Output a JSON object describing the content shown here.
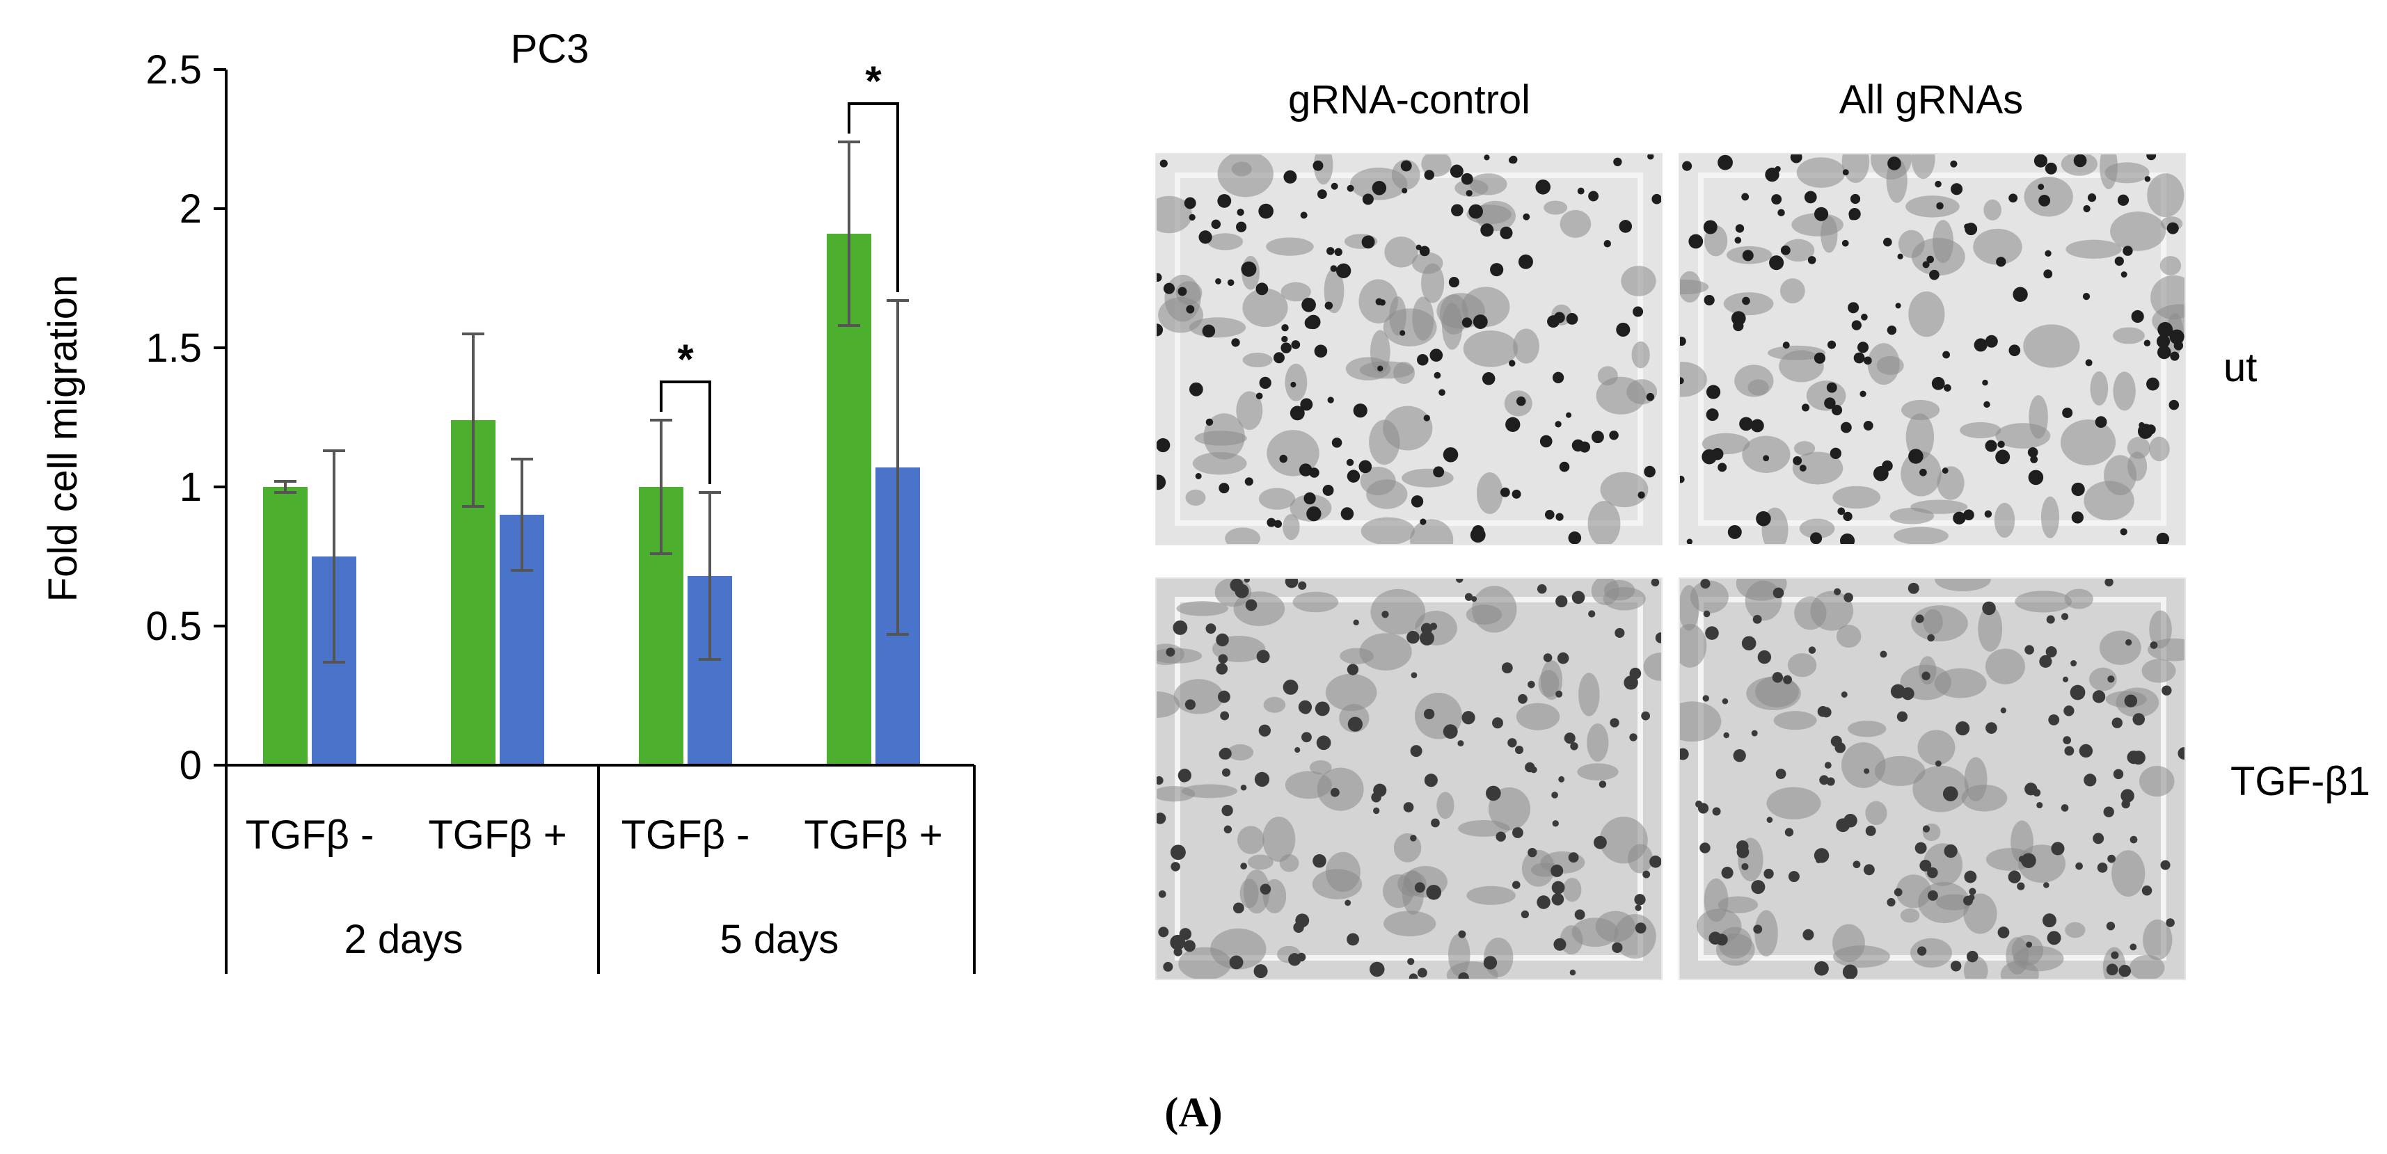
{
  "chart_data": {
    "type": "bar",
    "title": "PC3",
    "ylabel": "Fold cell migration",
    "xlabel": "",
    "ylim": [
      0,
      2.5
    ],
    "yticks": [
      0,
      0.5,
      1,
      1.5,
      2,
      2.5
    ],
    "ytick_labels": [
      "0",
      "0.5",
      "1",
      "1.5",
      "2",
      "2.5"
    ],
    "categories": [
      "TGFβ -",
      "TGFβ +",
      "TGFβ -",
      "TGFβ +"
    ],
    "groups": [
      {
        "label": "2 days",
        "categories": [
          0,
          1
        ]
      },
      {
        "label": "5 days",
        "categories": [
          2,
          3
        ]
      }
    ],
    "series": [
      {
        "color": "#4caf2e",
        "values": [
          1.0,
          1.24,
          1.0,
          1.91
        ],
        "errors": [
          0.02,
          0.31,
          0.24,
          0.33
        ]
      },
      {
        "color": "#4a74c9",
        "values": [
          0.75,
          0.9,
          0.68,
          1.07
        ],
        "errors": [
          0.38,
          0.2,
          0.3,
          0.6
        ]
      }
    ],
    "significance": [
      {
        "category": 2,
        "label": "*"
      },
      {
        "category": 3,
        "label": "*"
      }
    ],
    "grid": false,
    "legend": "none"
  },
  "micrographs": {
    "columns": [
      "gRNA-control",
      "All gRNAs"
    ],
    "rows": [
      "ut",
      "TGF-β1"
    ]
  },
  "panel_label": "(A)"
}
